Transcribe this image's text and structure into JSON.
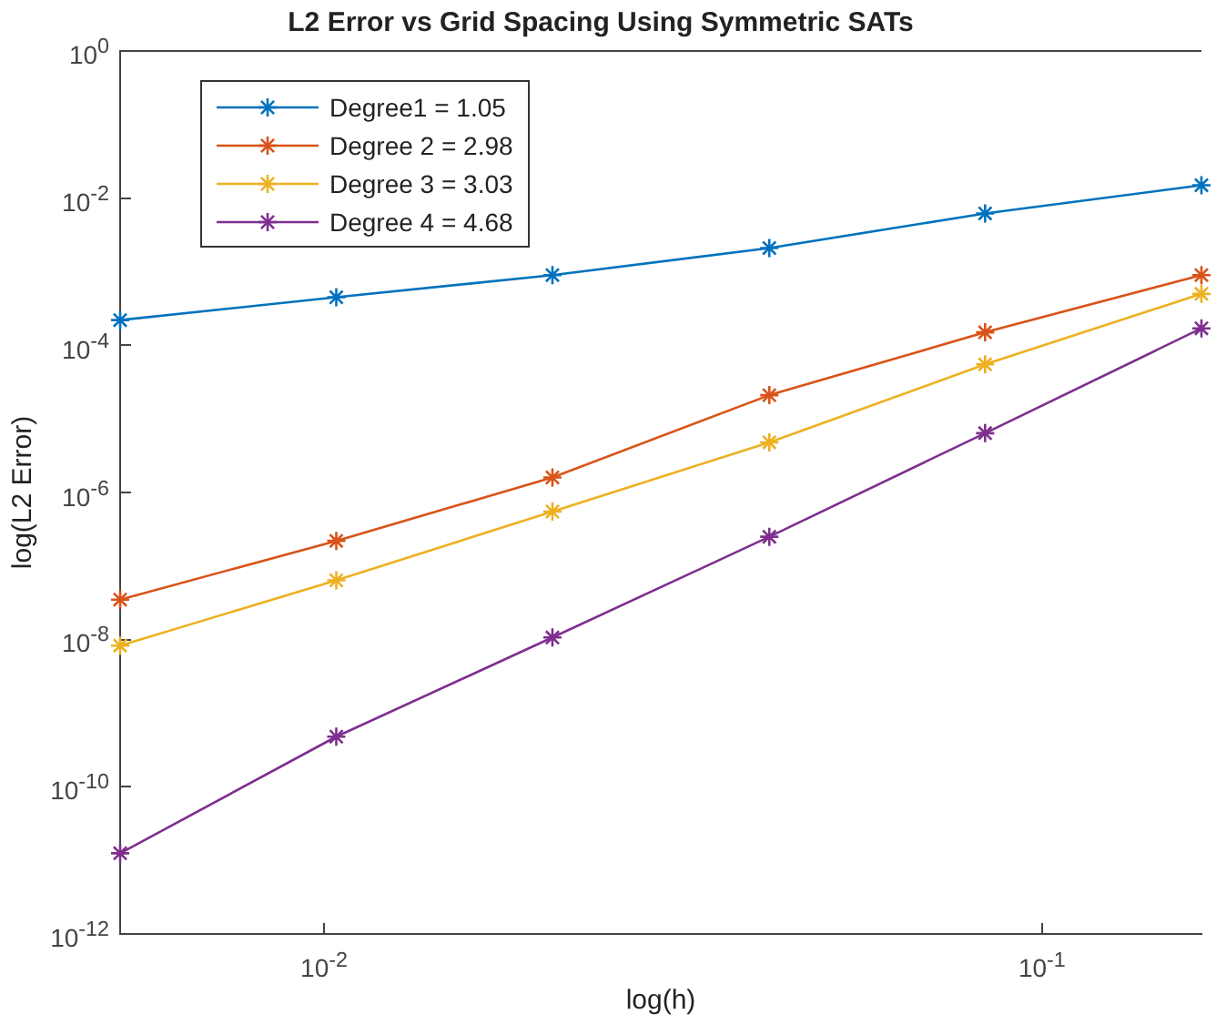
{
  "chart_data": {
    "type": "line",
    "title": "L2 Error vs Grid Spacing Using Symmetric SATs",
    "xlabel": "log(h)",
    "ylabel": "log(L2 Error)",
    "x": [
      0.0052,
      0.0104,
      0.0208,
      0.0417,
      0.0833,
      0.1667
    ],
    "series": [
      {
        "name": "Degree1 = 1.05",
        "color": "#0072bd",
        "values": [
          0.00022,
          0.00045,
          0.0009,
          0.0021,
          0.0062,
          0.015
        ]
      },
      {
        "name": "Degree 2 = 2.98",
        "color": "#d95319",
        "values": [
          3.5e-08,
          2.2e-07,
          1.6e-06,
          2.1e-05,
          0.00015,
          0.0009
        ]
      },
      {
        "name": "Degree 3 = 3.03",
        "color": "#edb120",
        "values": [
          8.3e-09,
          6.4e-08,
          5.5e-07,
          4.8e-06,
          5.5e-05,
          0.0005
        ]
      },
      {
        "name": "Degree 4 = 4.68",
        "color": "#7e2f8e",
        "values": [
          1.25e-11,
          4.8e-10,
          1.07e-08,
          2.5e-07,
          6.4e-06,
          0.00017
        ]
      }
    ],
    "log": "xy",
    "xlim": [
      0.0052,
      0.1667
    ],
    "ylim": [
      1e-12,
      1
    ],
    "xticks": [
      {
        "value": 0.01,
        "label": "10$^{-2}$"
      },
      {
        "value": 0.1,
        "label": "10$^{-1}$"
      }
    ],
    "yticks": [
      {
        "value": 1e-12,
        "label": "10$^{-12}$"
      },
      {
        "value": 1e-10,
        "label": "10$^{-10}$"
      },
      {
        "value": 1e-08,
        "label": "10$^{-8}$"
      },
      {
        "value": 1e-06,
        "label": "10$^{-6}$"
      },
      {
        "value": 0.0001,
        "label": "10$^{-4}$"
      },
      {
        "value": 0.01,
        "label": "10$^{-2}$"
      },
      {
        "value": 1,
        "label": "10$^{0}$"
      }
    ],
    "grid": false,
    "legend": "top left",
    "marker": "cross",
    "line_style": "solid"
  }
}
